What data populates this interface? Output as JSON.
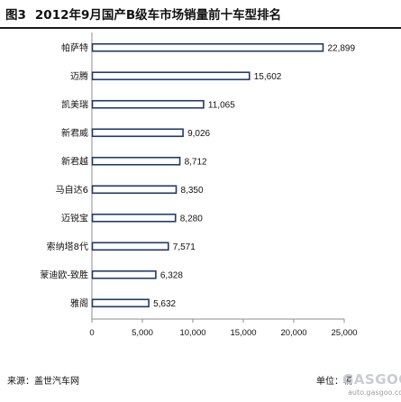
{
  "figure_label": "图3",
  "title": "2012年9月国产B级车市场销量前十车型排名",
  "source_text": "来源：盖世汽车网",
  "unit_text": "单位：辆",
  "watermark": {
    "logo": "GASGOO",
    "url": "auto.gasgoo.com"
  },
  "colors": {
    "bar_fill": "#ffffff",
    "bar_stroke": "#1f3b6e",
    "axis": "#8c8c8c",
    "text": "#111111"
  },
  "chart_data": {
    "type": "bar",
    "orientation": "horizontal",
    "title": "2012年9月国产B级车市场销量前十车型排名",
    "categories": [
      "帕萨特",
      "迈腾",
      "凯美瑞",
      "新君威",
      "新君越",
      "马自达6",
      "迈锐宝",
      "索纳塔8代",
      "蒙迪欧-致胜",
      "雅阁"
    ],
    "values": [
      22899,
      15602,
      11065,
      9026,
      8712,
      8350,
      8280,
      7571,
      6328,
      5632
    ],
    "value_labels": [
      "22,899",
      "15,602",
      "11,065",
      "9,026",
      "8,712",
      "8,350",
      "8,280",
      "7,571",
      "6,328",
      "5,632"
    ],
    "xlim": [
      0,
      25000
    ],
    "xticks": [
      0,
      5000,
      10000,
      15000,
      20000,
      25000
    ],
    "xtick_labels": [
      "0",
      "5,000",
      "10,000",
      "15,000",
      "20,000",
      "25,000"
    ],
    "grid": false,
    "legend": "none"
  }
}
